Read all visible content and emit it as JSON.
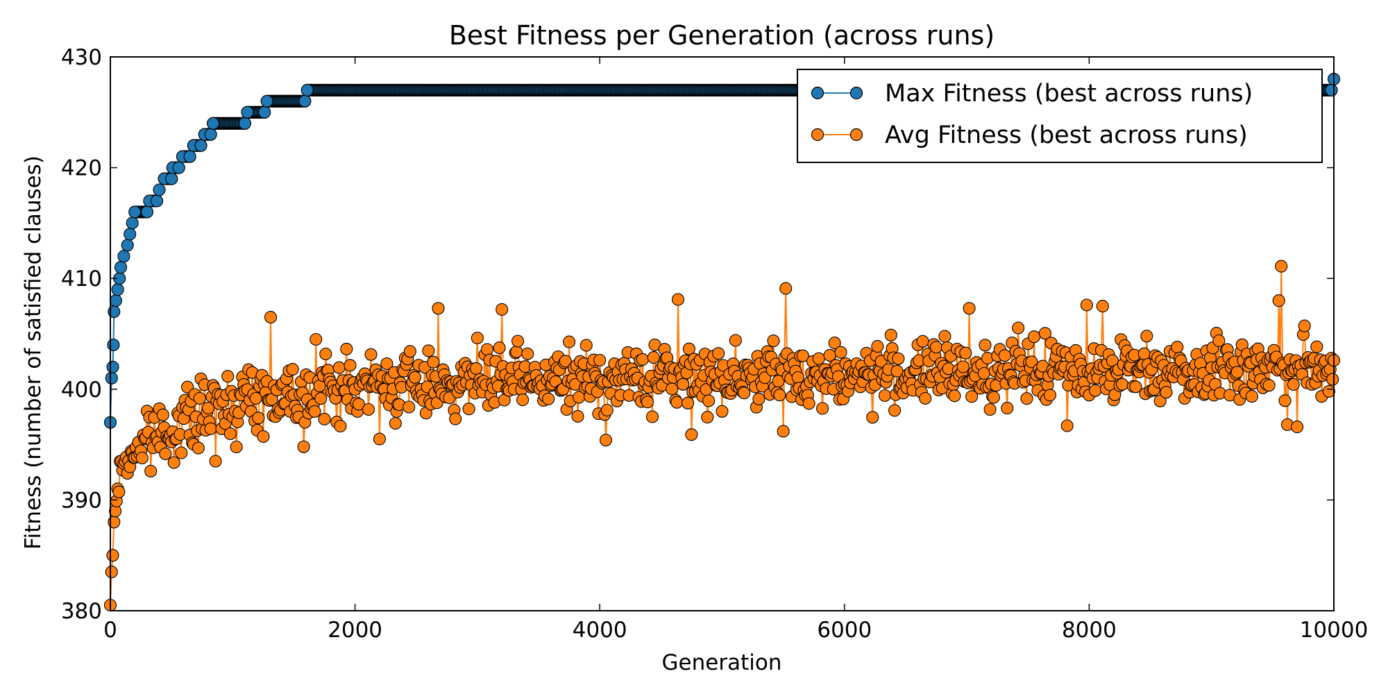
{
  "chart_data": {
    "type": "line",
    "title": "Best Fitness per Generation (across runs)",
    "xlabel": "Generation",
    "ylabel": "Fitness (number of satisfied clauses)",
    "xlim": [
      0,
      10000
    ],
    "ylim": [
      380,
      430
    ],
    "xticks": [
      0,
      2000,
      4000,
      6000,
      8000,
      10000
    ],
    "yticks": [
      380,
      390,
      400,
      410,
      420,
      430
    ],
    "grid": false,
    "legend_position": "top-right",
    "series": [
      {
        "name": "Max Fitness (best across runs)",
        "color": "#1f77b4",
        "marker": "circle",
        "points": [
          [
            0,
            397
          ],
          [
            10,
            401
          ],
          [
            20,
            402
          ],
          [
            25,
            404
          ],
          [
            30,
            407
          ],
          [
            45,
            408
          ],
          [
            60,
            409
          ],
          [
            75,
            410
          ],
          [
            85,
            411
          ],
          [
            110,
            412
          ],
          [
            140,
            413
          ],
          [
            160,
            414
          ],
          [
            180,
            415
          ],
          [
            200,
            416
          ],
          [
            300,
            416
          ],
          [
            320,
            417
          ],
          [
            380,
            417
          ],
          [
            400,
            418
          ],
          [
            440,
            419
          ],
          [
            500,
            419
          ],
          [
            510,
            420
          ],
          [
            560,
            420
          ],
          [
            590,
            421
          ],
          [
            650,
            421
          ],
          [
            680,
            422
          ],
          [
            740,
            422
          ],
          [
            770,
            423
          ],
          [
            820,
            423
          ],
          [
            840,
            424
          ],
          [
            1100,
            424
          ],
          [
            1120,
            425
          ],
          [
            1260,
            425
          ],
          [
            1280,
            426
          ],
          [
            1590,
            426
          ],
          [
            1610,
            427
          ],
          [
            9980,
            427
          ],
          [
            10000,
            428
          ]
        ]
      },
      {
        "name": "Avg Fitness (best across runs)",
        "color": "#ff7f0e",
        "marker": "circle",
        "trend": [
          [
            0,
            381
          ],
          [
            50,
            390
          ],
          [
            100,
            393
          ],
          [
            200,
            394.5
          ],
          [
            400,
            396
          ],
          [
            700,
            397.5
          ],
          [
            1000,
            399
          ],
          [
            1500,
            399.8
          ],
          [
            2000,
            400.2
          ],
          [
            3000,
            400.7
          ],
          [
            4000,
            400.8
          ],
          [
            5000,
            401.2
          ],
          [
            6000,
            401.3
          ],
          [
            7000,
            401.5
          ],
          [
            8000,
            401.8
          ],
          [
            9000,
            401.9
          ],
          [
            10000,
            402
          ]
        ],
        "noise_amplitude": 2.6,
        "sample_step": 10,
        "extremes": [
          [
            0,
            380.5
          ],
          [
            10,
            383.5
          ],
          [
            20,
            385
          ],
          [
            30,
            388
          ],
          [
            40,
            389
          ],
          [
            60,
            391
          ],
          [
            90,
            393.5
          ],
          [
            860,
            393.5
          ],
          [
            1310,
            406.5
          ],
          [
            1580,
            394.8
          ],
          [
            1680,
            404.5
          ],
          [
            2200,
            395.5
          ],
          [
            2680,
            407.3
          ],
          [
            3200,
            407.2
          ],
          [
            4050,
            395.4
          ],
          [
            4640,
            408.1
          ],
          [
            4750,
            395.9
          ],
          [
            5500,
            396.2
          ],
          [
            5520,
            409.1
          ],
          [
            7020,
            407.3
          ],
          [
            7820,
            396.7
          ],
          [
            7980,
            407.6
          ],
          [
            8110,
            407.5
          ],
          [
            9550,
            408
          ],
          [
            9570,
            411.1
          ],
          [
            9620,
            396.8
          ],
          [
            9700,
            396.6
          ]
        ]
      }
    ]
  }
}
